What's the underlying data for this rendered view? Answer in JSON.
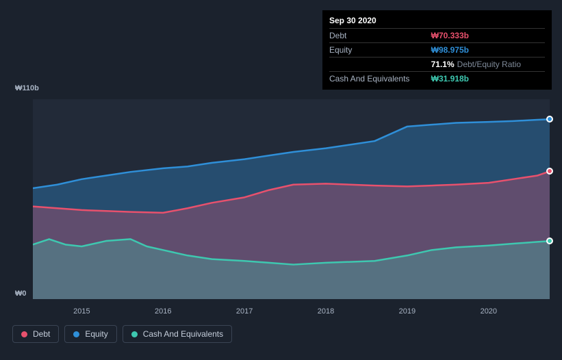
{
  "colors": {
    "background": "#1b222d",
    "plot_bg": "#222a38",
    "grid": "#2d3645",
    "axis_text": "#a9b4c4",
    "tooltip_bg": "#000000",
    "debt": "#e8516d",
    "equity": "#2f8fd8",
    "cash": "#3ec8b0",
    "debt_fill": "rgba(232,81,109,0.30)",
    "equity_fill": "rgba(47,143,216,0.35)",
    "cash_fill": "rgba(62,200,176,0.30)"
  },
  "tooltip": {
    "date": "Sep 30 2020",
    "rows": [
      {
        "label": "Debt",
        "value": "₩70.333b",
        "color_key": "debt"
      },
      {
        "label": "Equity",
        "value": "₩98.975b",
        "color_key": "equity"
      },
      {
        "label": "",
        "pct": "71.1%",
        "sublabel": "Debt/Equity Ratio"
      },
      {
        "label": "Cash And Equivalents",
        "value": "₩31.918b",
        "color_key": "cash"
      }
    ]
  },
  "chart": {
    "type": "area",
    "ylim": [
      0,
      110
    ],
    "y_ticks": [
      {
        "v": 110,
        "label": "₩110b"
      },
      {
        "v": 0,
        "label": "₩0"
      }
    ],
    "x_ticks": [
      "2015",
      "2016",
      "2017",
      "2018",
      "2019",
      "2020"
    ],
    "x_domain": [
      2014.4,
      2020.75
    ],
    "series": {
      "equity": [
        [
          2014.4,
          61
        ],
        [
          2014.7,
          63
        ],
        [
          2015.0,
          66
        ],
        [
          2015.3,
          68
        ],
        [
          2015.6,
          70
        ],
        [
          2016.0,
          72
        ],
        [
          2016.3,
          73
        ],
        [
          2016.6,
          75
        ],
        [
          2017.0,
          77
        ],
        [
          2017.3,
          79
        ],
        [
          2017.6,
          81
        ],
        [
          2018.0,
          83
        ],
        [
          2018.3,
          85
        ],
        [
          2018.6,
          87
        ],
        [
          2019.0,
          95
        ],
        [
          2019.3,
          96
        ],
        [
          2019.6,
          97
        ],
        [
          2020.0,
          97.5
        ],
        [
          2020.3,
          98
        ],
        [
          2020.6,
          98.7
        ],
        [
          2020.75,
          98.975
        ]
      ],
      "debt": [
        [
          2014.4,
          51
        ],
        [
          2014.7,
          50
        ],
        [
          2015.0,
          49
        ],
        [
          2015.3,
          48.5
        ],
        [
          2015.6,
          48
        ],
        [
          2016.0,
          47.5
        ],
        [
          2016.3,
          50
        ],
        [
          2016.6,
          53
        ],
        [
          2017.0,
          56
        ],
        [
          2017.3,
          60
        ],
        [
          2017.6,
          63
        ],
        [
          2018.0,
          63.5
        ],
        [
          2018.3,
          63
        ],
        [
          2018.6,
          62.5
        ],
        [
          2019.0,
          62
        ],
        [
          2019.3,
          62.5
        ],
        [
          2019.6,
          63
        ],
        [
          2020.0,
          64
        ],
        [
          2020.3,
          66
        ],
        [
          2020.6,
          68
        ],
        [
          2020.75,
          70.333
        ]
      ],
      "cash": [
        [
          2014.4,
          30
        ],
        [
          2014.6,
          33
        ],
        [
          2014.8,
          30
        ],
        [
          2015.0,
          29
        ],
        [
          2015.3,
          32
        ],
        [
          2015.6,
          33
        ],
        [
          2015.8,
          29
        ],
        [
          2016.0,
          27
        ],
        [
          2016.3,
          24
        ],
        [
          2016.6,
          22
        ],
        [
          2017.0,
          21
        ],
        [
          2017.3,
          20
        ],
        [
          2017.6,
          19
        ],
        [
          2018.0,
          20
        ],
        [
          2018.3,
          20.5
        ],
        [
          2018.6,
          21
        ],
        [
          2019.0,
          24
        ],
        [
          2019.3,
          27
        ],
        [
          2019.6,
          28.5
        ],
        [
          2020.0,
          29.5
        ],
        [
          2020.3,
          30.5
        ],
        [
          2020.6,
          31.5
        ],
        [
          2020.75,
          31.918
        ]
      ]
    },
    "line_width": 2.5,
    "markers": [
      {
        "series": "equity",
        "x": 2020.75,
        "y": 98.975
      },
      {
        "series": "debt",
        "x": 2020.75,
        "y": 70.333
      },
      {
        "series": "cash",
        "x": 2020.75,
        "y": 31.918
      }
    ]
  },
  "legend": [
    {
      "label": "Debt",
      "color_key": "debt"
    },
    {
      "label": "Equity",
      "color_key": "equity"
    },
    {
      "label": "Cash And Equivalents",
      "color_key": "cash"
    }
  ]
}
